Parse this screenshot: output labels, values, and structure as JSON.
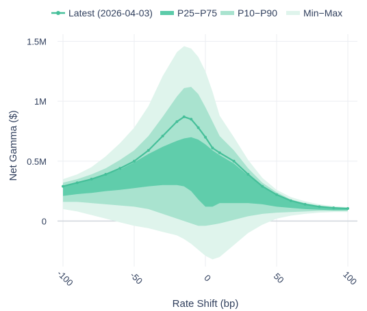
{
  "colors": {
    "line": "#45bf99",
    "band_p25_p75": "#5ccba9",
    "band_p10_p90": "#a9e3cf",
    "band_min_max": "#dff4ec",
    "grid": "#ebeef2",
    "zero_line": "#cfd5dc",
    "text": "#2f3e5c"
  },
  "chart_data": {
    "type": "area",
    "title": "",
    "xlabel": "Rate Shift (bp)",
    "ylabel": "Net Gamma ($)",
    "xlim": [
      -100,
      100
    ],
    "ylim": [
      -380000,
      1560000
    ],
    "grid": true,
    "legend_position": "top",
    "x_ticks": [
      -100,
      -50,
      0,
      50,
      100
    ],
    "x_tick_labels": [
      "-100",
      "-50",
      "0",
      "50",
      "100"
    ],
    "y_ticks": [
      0,
      500000,
      1000000,
      1500000
    ],
    "y_tick_labels": [
      "0",
      "0.5M",
      "1M",
      "1.5M"
    ],
    "x": [
      -100,
      -90,
      -80,
      -70,
      -60,
      -50,
      -40,
      -30,
      -20,
      -15,
      -10,
      -5,
      0,
      5,
      10,
      20,
      30,
      40,
      50,
      60,
      70,
      80,
      90,
      100
    ],
    "series": [
      {
        "name": "Latest (2026-04-03)",
        "kind": "line",
        "values": [
          290000,
          320000,
          350000,
          390000,
          440000,
          500000,
          590000,
          710000,
          830000,
          870000,
          850000,
          780000,
          700000,
          610000,
          570000,
          500000,
          390000,
          290000,
          220000,
          170000,
          140000,
          120000,
          110000,
          105000
        ]
      },
      {
        "name": "P25-P75",
        "kind": "band",
        "lower": [
          210000,
          225000,
          235000,
          250000,
          260000,
          275000,
          290000,
          300000,
          300000,
          290000,
          250000,
          180000,
          120000,
          120000,
          150000,
          150000,
          150000,
          140000,
          120000,
          110000,
          100000,
          95000,
          90000,
          90000
        ],
        "upper": [
          290000,
          320000,
          350000,
          390000,
          430000,
          490000,
          560000,
          620000,
          670000,
          690000,
          700000,
          680000,
          640000,
          590000,
          550000,
          480000,
          380000,
          290000,
          220000,
          170000,
          140000,
          120000,
          110000,
          100000
        ]
      },
      {
        "name": "P10-P90",
        "kind": "band",
        "lower": [
          160000,
          160000,
          150000,
          140000,
          130000,
          120000,
          100000,
          60000,
          20000,
          0,
          -20000,
          -40000,
          -40000,
          -30000,
          -20000,
          10000,
          40000,
          60000,
          70000,
          75000,
          80000,
          85000,
          85000,
          85000
        ],
        "upper": [
          320000,
          350000,
          390000,
          440000,
          510000,
          590000,
          710000,
          870000,
          1040000,
          1110000,
          1120000,
          1060000,
          950000,
          830000,
          710000,
          590000,
          440000,
          320000,
          240000,
          180000,
          150000,
          130000,
          115000,
          110000
        ]
      },
      {
        "name": "Min-Max",
        "kind": "band",
        "lower": [
          100000,
          80000,
          50000,
          20000,
          -10000,
          -40000,
          -60000,
          -90000,
          -120000,
          -150000,
          -190000,
          -240000,
          -290000,
          -320000,
          -300000,
          -200000,
          -100000,
          -30000,
          20000,
          45000,
          60000,
          70000,
          75000,
          75000
        ],
        "upper": [
          350000,
          390000,
          450000,
          540000,
          650000,
          780000,
          960000,
          1210000,
          1410000,
          1460000,
          1440000,
          1370000,
          1250000,
          1080000,
          880000,
          700000,
          510000,
          360000,
          260000,
          200000,
          165000,
          140000,
          125000,
          115000
        ]
      }
    ],
    "legend": [
      {
        "label": "Latest (2026-04-03)",
        "marker": "line"
      },
      {
        "label": "P25−P75",
        "marker": "band"
      },
      {
        "label": "P10−P90",
        "marker": "band"
      },
      {
        "label": "Min−Max",
        "marker": "band"
      }
    ]
  }
}
